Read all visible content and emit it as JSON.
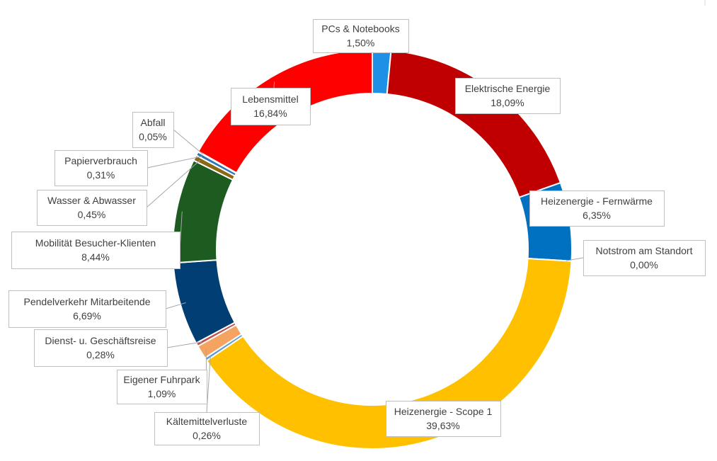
{
  "chart_data": {
    "type": "pie",
    "variant": "doughnut",
    "title": "",
    "legend": "none",
    "series": [
      {
        "name": "PCs & Notebooks",
        "value_label": "1,50%",
        "value": 1.5,
        "color": "#1e90e6"
      },
      {
        "name": "Elektrische Energie",
        "value_label": "18,09%",
        "value": 18.09,
        "color": "#c00000"
      },
      {
        "name": "Heizenergie - Fernwärme",
        "value_label": "6,35%",
        "value": 6.35,
        "color": "#0070c0"
      },
      {
        "name": "Notstrom am Standort",
        "value_label": "0,00%",
        "value": 0.0,
        "color": "#9dc3e6"
      },
      {
        "name": "Heizenergie - Scope 1",
        "value_label": "39,63%",
        "value": 39.63,
        "color": "#ffc000"
      },
      {
        "name": "Kältemittelverluste",
        "value_label": "0,26%",
        "value": 0.26,
        "color": "#5b9bd5"
      },
      {
        "name": "Eigener Fuhrpark",
        "value_label": "1,09%",
        "value": 1.09,
        "color": "#f4a460"
      },
      {
        "name": "Dienst- u. Geschäftsreise",
        "value_label": "0,28%",
        "value": 0.28,
        "color": "#c0504d"
      },
      {
        "name": "Pendelverkehr Mitarbeitende",
        "value_label": "6,69%",
        "value": 6.69,
        "color": "#003e73"
      },
      {
        "name": "Mobilität Besucher-Klienten",
        "value_label": "8,44%",
        "value": 8.44,
        "color": "#1e5b20"
      },
      {
        "name": "Wasser & Abwasser",
        "value_label": "0,45%",
        "value": 0.45,
        "color": "#8b6914"
      },
      {
        "name": "Papierverbrauch",
        "value_label": "0,31%",
        "value": 0.31,
        "color": "#2e75b6"
      },
      {
        "name": "Abfall",
        "value_label": "0,05%",
        "value": 0.05,
        "color": "#7f7f7f"
      },
      {
        "name": "Lebensmittel",
        "value_label": "16,84%",
        "value": 16.84,
        "color": "#ff0000"
      }
    ]
  }
}
